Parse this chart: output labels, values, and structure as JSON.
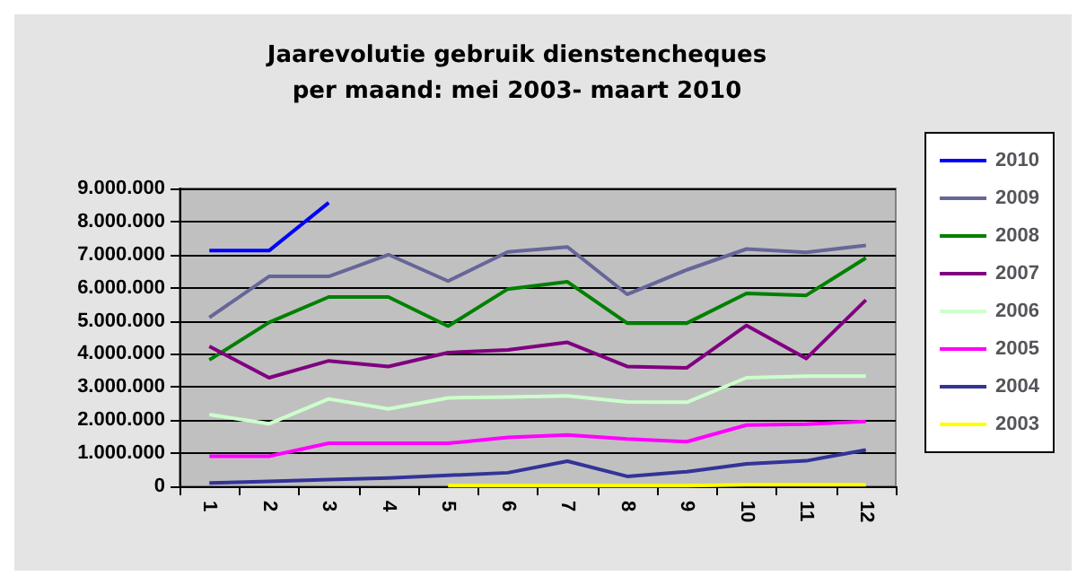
{
  "chart_data": {
    "type": "line",
    "title": "Jaarevolutie gebruik dienstencheques\nper maand: mei 2003- maart 2010",
    "categories": [
      "1",
      "2",
      "3",
      "4",
      "5",
      "6",
      "7",
      "8",
      "9",
      "10",
      "11",
      "12"
    ],
    "ylim": [
      0,
      9000000
    ],
    "yticks": [
      {
        "value": 0,
        "label": "0"
      },
      {
        "value": 1000000,
        "label": "1.000.000"
      },
      {
        "value": 2000000,
        "label": "2.000.000"
      },
      {
        "value": 3000000,
        "label": "3.000.000"
      },
      {
        "value": 4000000,
        "label": "4.000.000"
      },
      {
        "value": 5000000,
        "label": "5.000.000"
      },
      {
        "value": 6000000,
        "label": "6.000.000"
      },
      {
        "value": 7000000,
        "label": "7.000.000"
      },
      {
        "value": 8000000,
        "label": "8.000.000"
      },
      {
        "value": 9000000,
        "label": "9.000.000"
      }
    ],
    "grid": "y",
    "legend": "right",
    "marker": "none",
    "line_style": "solid",
    "series": [
      {
        "name": "2010",
        "color": "#0000ff",
        "values": [
          7120000,
          7120000,
          8570000,
          null,
          null,
          null,
          null,
          null,
          null,
          null,
          null,
          null
        ]
      },
      {
        "name": "2009",
        "color": "#666699",
        "values": [
          5100000,
          6340000,
          6340000,
          7000000,
          6200000,
          7080000,
          7230000,
          5800000,
          6540000,
          7170000,
          7070000,
          7280000
        ]
      },
      {
        "name": "2008",
        "color": "#008000",
        "values": [
          3820000,
          4950000,
          5720000,
          5720000,
          4840000,
          5960000,
          6180000,
          4930000,
          4930000,
          5830000,
          5770000,
          6900000
        ]
      },
      {
        "name": "2007",
        "color": "#800080",
        "values": [
          4230000,
          3280000,
          3790000,
          3620000,
          4040000,
          4120000,
          4350000,
          3620000,
          3580000,
          4860000,
          3860000,
          5630000
        ]
      },
      {
        "name": "2006",
        "color": "#ccffcc",
        "values": [
          2170000,
          1890000,
          2640000,
          2340000,
          2670000,
          2700000,
          2730000,
          2550000,
          2540000,
          3280000,
          3330000,
          3330000
        ]
      },
      {
        "name": "2005",
        "color": "#ff00ff",
        "values": [
          910000,
          910000,
          1300000,
          1300000,
          1300000,
          1480000,
          1550000,
          1430000,
          1350000,
          1850000,
          1880000,
          1960000
        ]
      },
      {
        "name": "2004",
        "color": "#333399",
        "values": [
          100000,
          150000,
          200000,
          250000,
          330000,
          410000,
          760000,
          300000,
          440000,
          680000,
          770000,
          1100000
        ]
      },
      {
        "name": "2003",
        "color": "#ffff00",
        "values": [
          null,
          null,
          null,
          null,
          20000,
          20000,
          20000,
          20000,
          20000,
          50000,
          50000,
          50000
        ]
      }
    ]
  }
}
